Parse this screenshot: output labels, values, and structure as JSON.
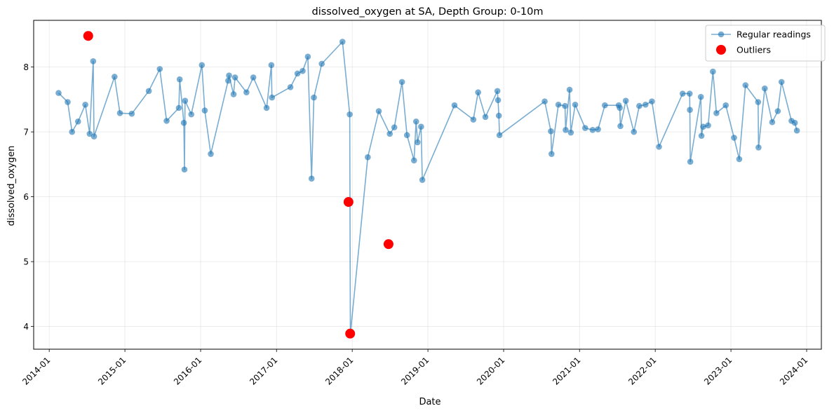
{
  "chart_data": {
    "type": "scatter",
    "title": "dissolved_oxygen at SA, Depth Group: 0-10m",
    "xlabel": "Date",
    "ylabel": "dissolved_oxygen",
    "xlim": [
      "2013-10-18",
      "2024-03-12"
    ],
    "ylim": [
      3.65,
      8.72
    ],
    "x_ticks": [
      "2014-01-01",
      "2015-01-01",
      "2016-01-01",
      "2017-01-01",
      "2018-01-01",
      "2019-01-01",
      "2020-01-01",
      "2021-01-01",
      "2022-01-01",
      "2023-01-01",
      "2024-01-01"
    ],
    "x_tick_labels": [
      "2014-01",
      "2015-01",
      "2016-01",
      "2017-01",
      "2018-01",
      "2019-01",
      "2020-01",
      "2021-01",
      "2022-01",
      "2023-01",
      "2024-01"
    ],
    "y_ticks": [
      4,
      5,
      6,
      7,
      8
    ],
    "grid": true,
    "legend_position": "top-right",
    "colors": {
      "regular": "#1f77b4",
      "outlier": "#ff0000"
    },
    "series": [
      {
        "name": "Regular readings",
        "style": "line+marker",
        "points": [
          [
            "2014-02-15",
            7.6
          ],
          [
            "2014-03-31",
            7.46
          ],
          [
            "2014-04-21",
            7.0
          ],
          [
            "2014-05-20",
            7.16
          ],
          [
            "2014-06-24",
            7.42
          ],
          [
            "2014-07-15",
            6.97
          ],
          [
            "2014-08-01",
            8.09
          ],
          [
            "2014-08-05",
            6.93
          ],
          [
            "2014-11-12",
            7.85
          ],
          [
            "2014-12-08",
            7.29
          ],
          [
            "2015-02-03",
            7.28
          ],
          [
            "2015-04-26",
            7.63
          ],
          [
            "2015-06-18",
            7.97
          ],
          [
            "2015-07-21",
            7.17
          ],
          [
            "2015-09-18",
            7.37
          ],
          [
            "2015-09-22",
            7.81
          ],
          [
            "2015-10-12",
            7.14
          ],
          [
            "2015-10-15",
            6.42
          ],
          [
            "2015-10-18",
            7.48
          ],
          [
            "2015-11-17",
            7.27
          ],
          [
            "2016-01-07",
            8.03
          ],
          [
            "2016-01-21",
            7.33
          ],
          [
            "2016-02-19",
            6.66
          ],
          [
            "2016-05-13",
            7.79
          ],
          [
            "2016-05-17",
            7.87
          ],
          [
            "2016-06-08",
            7.58
          ],
          [
            "2016-06-15",
            7.84
          ],
          [
            "2016-08-09",
            7.61
          ],
          [
            "2016-09-11",
            7.84
          ],
          [
            "2016-11-14",
            7.37
          ],
          [
            "2016-12-07",
            8.03
          ],
          [
            "2016-12-10",
            7.53
          ],
          [
            "2017-03-09",
            7.69
          ],
          [
            "2017-04-12",
            7.9
          ],
          [
            "2017-05-07",
            7.94
          ],
          [
            "2017-06-01",
            8.16
          ],
          [
            "2017-06-19",
            6.28
          ],
          [
            "2017-06-30",
            7.53
          ],
          [
            "2017-08-07",
            8.05
          ],
          [
            "2017-11-15",
            8.39
          ],
          [
            "2017-12-20",
            7.27
          ],
          [
            "2017-12-23",
            3.88
          ],
          [
            "2018-03-17",
            6.61
          ],
          [
            "2018-05-09",
            7.32
          ],
          [
            "2018-07-01",
            6.97
          ],
          [
            "2018-07-23",
            7.07
          ],
          [
            "2018-08-29",
            7.77
          ],
          [
            "2018-09-22",
            6.95
          ],
          [
            "2018-10-26",
            6.56
          ],
          [
            "2018-11-05",
            7.16
          ],
          [
            "2018-11-12",
            6.84
          ],
          [
            "2018-11-29",
            7.08
          ],
          [
            "2018-12-05",
            6.26
          ],
          [
            "2019-05-09",
            7.41
          ],
          [
            "2019-08-08",
            7.19
          ],
          [
            "2019-08-31",
            7.61
          ],
          [
            "2019-10-05",
            7.23
          ],
          [
            "2019-12-02",
            7.63
          ],
          [
            "2019-12-05",
            7.49
          ],
          [
            "2019-12-09",
            7.25
          ],
          [
            "2019-12-12",
            6.95
          ],
          [
            "2020-07-17",
            7.47
          ],
          [
            "2020-08-16",
            7.01
          ],
          [
            "2020-08-19",
            6.66
          ],
          [
            "2020-09-21",
            7.42
          ],
          [
            "2020-10-23",
            7.4
          ],
          [
            "2020-10-26",
            7.03
          ],
          [
            "2020-11-14",
            7.65
          ],
          [
            "2020-11-20",
            6.99
          ],
          [
            "2020-12-11",
            7.42
          ],
          [
            "2021-01-28",
            7.06
          ],
          [
            "2021-03-05",
            7.03
          ],
          [
            "2021-03-31",
            7.04
          ],
          [
            "2021-05-03",
            7.41
          ],
          [
            "2021-07-09",
            7.41
          ],
          [
            "2021-07-14",
            7.37
          ],
          [
            "2021-07-17",
            7.09
          ],
          [
            "2021-08-12",
            7.48
          ],
          [
            "2021-09-20",
            7.0
          ],
          [
            "2021-10-16",
            7.4
          ],
          [
            "2021-11-15",
            7.42
          ],
          [
            "2021-12-16",
            7.47
          ],
          [
            "2022-01-19",
            6.77
          ],
          [
            "2022-05-13",
            7.59
          ],
          [
            "2022-06-16",
            7.59
          ],
          [
            "2022-06-17",
            7.34
          ],
          [
            "2022-06-19",
            6.54
          ],
          [
            "2022-08-09",
            7.54
          ],
          [
            "2022-08-12",
            6.94
          ],
          [
            "2022-08-20",
            7.08
          ],
          [
            "2022-09-13",
            7.1
          ],
          [
            "2022-10-06",
            7.93
          ],
          [
            "2022-10-23",
            7.29
          ],
          [
            "2022-12-07",
            7.41
          ],
          [
            "2023-01-16",
            6.91
          ],
          [
            "2023-02-10",
            6.58
          ],
          [
            "2023-03-12",
            7.72
          ],
          [
            "2023-05-12",
            7.46
          ],
          [
            "2023-05-14",
            6.76
          ],
          [
            "2023-06-13",
            7.67
          ],
          [
            "2023-07-19",
            7.15
          ],
          [
            "2023-08-15",
            7.32
          ],
          [
            "2023-09-02",
            7.77
          ],
          [
            "2023-10-20",
            7.17
          ],
          [
            "2023-11-05",
            7.14
          ],
          [
            "2023-11-15",
            7.02
          ]
        ]
      },
      {
        "name": "Outliers",
        "style": "marker",
        "points": [
          [
            "2014-07-08",
            8.48
          ],
          [
            "2017-12-14",
            5.92
          ],
          [
            "2017-12-22",
            3.89
          ],
          [
            "2018-06-25",
            5.27
          ]
        ]
      }
    ]
  }
}
